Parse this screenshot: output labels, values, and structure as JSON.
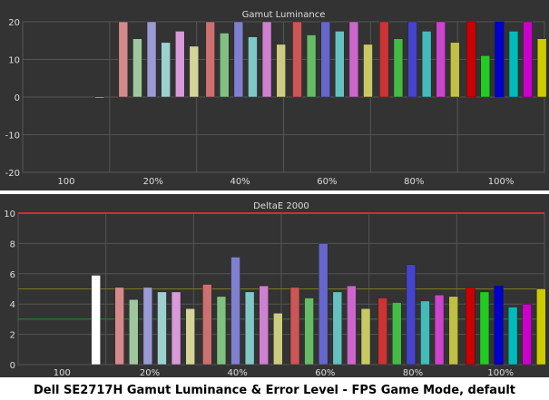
{
  "caption": "Dell SE2717H Gamut Luminance & Error Level - FPS Game Mode, default",
  "colors": {
    "panel_bg": "#333333",
    "grid": "#555555",
    "axis_text": "#dddddd",
    "title_text": "#dddddd",
    "threshold_red": "#d03030",
    "threshold_yellow": "#7a7a22",
    "threshold_green": "#2a8a2a"
  },
  "chart_data": [
    {
      "type": "bar",
      "title": "Gamut Luminance",
      "categories": [
        "100",
        "20%",
        "40%",
        "60%",
        "80%",
        "100%"
      ],
      "ylim": [
        -20,
        20
      ],
      "yticks": [
        20,
        10,
        0,
        -10,
        -20
      ],
      "grid": true,
      "bar_colors": [
        [
          "#ffffff"
        ],
        [
          "#d48a8a",
          "#9ec79e",
          "#9a9ad4",
          "#9ed0d0",
          "#d89ad8",
          "#d4d49a"
        ],
        [
          "#cc7070",
          "#80c080",
          "#8080d0",
          "#80c8c8",
          "#d080d0",
          "#cccc80"
        ],
        [
          "#cc5555",
          "#66bb66",
          "#6666cc",
          "#66c0c0",
          "#cc66cc",
          "#c8c866"
        ],
        [
          "#cc3333",
          "#44bb44",
          "#4444cc",
          "#44bbbb",
          "#cc44cc",
          "#c0c044"
        ],
        [
          "#cc0000",
          "#22cc22",
          "#0000cc",
          "#00bbbb",
          "#cc00cc",
          "#cccc00"
        ]
      ],
      "values": [
        [
          0
        ],
        [
          20,
          15.5,
          20,
          14.5,
          17.5,
          13.5
        ],
        [
          20,
          17,
          20,
          16,
          20,
          14
        ],
        [
          20,
          16.5,
          20,
          17.5,
          20,
          14
        ],
        [
          20,
          15.5,
          20,
          17.5,
          20,
          14.5
        ],
        [
          20,
          11,
          20,
          17.5,
          20,
          15.5
        ]
      ]
    },
    {
      "type": "bar",
      "title": "DeltaE 2000",
      "categories": [
        "100",
        "20%",
        "40%",
        "60%",
        "80%",
        "100%"
      ],
      "ylim": [
        0,
        10
      ],
      "yticks": [
        10,
        8,
        6,
        4,
        2,
        0
      ],
      "grid": true,
      "thresholds": [
        {
          "value": 10,
          "color": "#d03030"
        },
        {
          "value": 5,
          "color": "#7a7a22"
        },
        {
          "value": 3,
          "color": "#2a8a2a"
        }
      ],
      "bar_colors": [
        [
          "#ffffff"
        ],
        [
          "#d48a8a",
          "#9ec79e",
          "#9a9ad4",
          "#9ed0d0",
          "#d89ad8",
          "#d4d49a"
        ],
        [
          "#cc7070",
          "#80c080",
          "#8080d0",
          "#80c8c8",
          "#d080d0",
          "#cccc80"
        ],
        [
          "#cc5555",
          "#66bb66",
          "#6666cc",
          "#66c0c0",
          "#cc66cc",
          "#c8c866"
        ],
        [
          "#cc3333",
          "#44bb44",
          "#4444cc",
          "#44bbbb",
          "#cc44cc",
          "#c0c044"
        ],
        [
          "#cc0000",
          "#22cc22",
          "#0000cc",
          "#00bbbb",
          "#cc00cc",
          "#cccc00"
        ]
      ],
      "values": [
        [
          5.9
        ],
        [
          5.1,
          4.3,
          5.1,
          4.8,
          4.8,
          3.7
        ],
        [
          5.3,
          4.5,
          7.1,
          4.8,
          5.2,
          3.4
        ],
        [
          5.1,
          4.4,
          8.0,
          4.8,
          5.2,
          3.7
        ],
        [
          4.4,
          4.1,
          6.6,
          4.2,
          4.6,
          4.5
        ],
        [
          5.1,
          4.8,
          5.2,
          3.8,
          4.0,
          5.0
        ]
      ]
    }
  ]
}
